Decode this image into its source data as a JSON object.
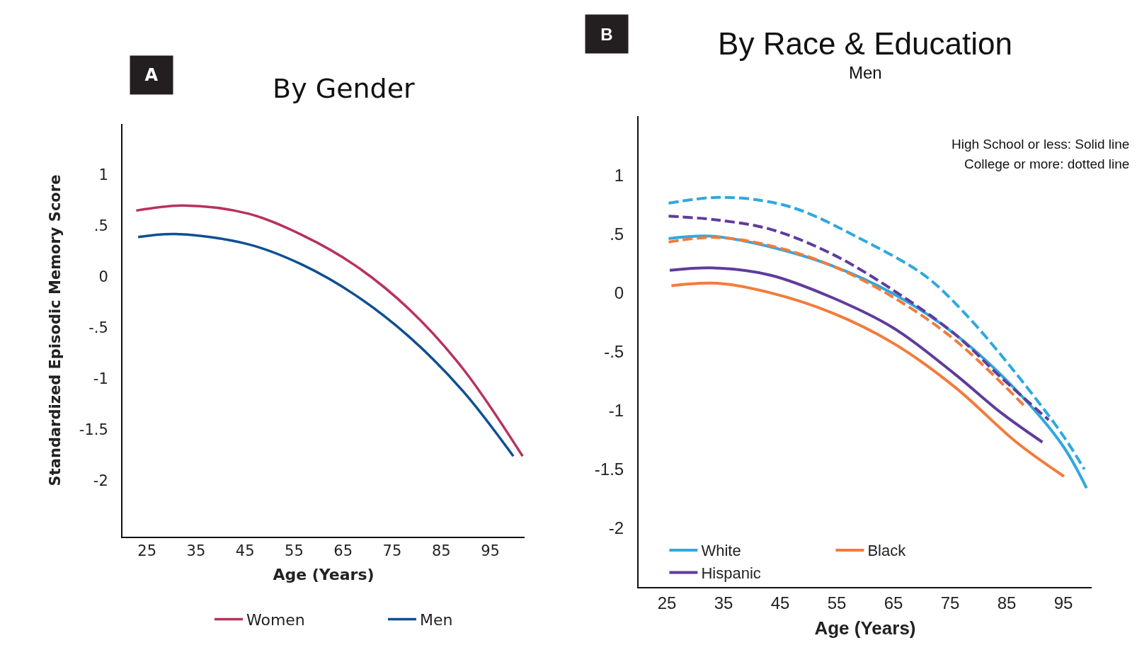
{
  "chart_data": [
    {
      "type": "line",
      "title": "By Gender",
      "xlabel": "Age (Years)",
      "ylabel": "Standardized Episodic Memory Score",
      "annotations": [
        "A"
      ],
      "legend": "bottom",
      "xlim": [
        20,
        102
      ],
      "ylim": [
        -2.55,
        1.5
      ],
      "xticks": [
        25,
        35,
        45,
        55,
        65,
        75,
        85,
        95
      ],
      "yticks": [
        {
          "value": 1,
          "label": "1"
        },
        {
          "value": 0.5,
          "label": ".5"
        },
        {
          "value": 0,
          "label": "0"
        },
        {
          "value": -0.5,
          "label": "-.5"
        },
        {
          "value": -1,
          "label": "-1"
        },
        {
          "value": -1.5,
          "label": "-1.5"
        },
        {
          "value": -2,
          "label": "-2"
        }
      ],
      "series": [
        {
          "name": "Women",
          "color": "#b8325c",
          "line_style": "solid",
          "x": [
            22.8,
            32.5,
            45.6,
            56.6,
            67.5,
            78.5,
            89.4,
            101.6
          ],
          "values": [
            0.65,
            0.7,
            0.62,
            0.41,
            0.11,
            -0.32,
            -0.9,
            -1.76
          ]
        },
        {
          "name": "Men",
          "color": "#0f4f92",
          "line_style": "solid",
          "x": [
            23.2,
            30.9,
            45.6,
            56.6,
            67.5,
            78.5,
            89.4,
            99.7
          ],
          "values": [
            0.39,
            0.42,
            0.32,
            0.12,
            -0.18,
            -0.59,
            -1.12,
            -1.76
          ]
        }
      ]
    },
    {
      "type": "line",
      "title": "By Race & Education",
      "subtitle": "Men",
      "xlabel": "Age (Years)",
      "annotations": [
        "B",
        "High School or less: Solid line",
        "College or more: dotted line"
      ],
      "legend": "bottom left",
      "xlim": [
        20,
        100
      ],
      "ylim": [
        -2.5,
        1.5
      ],
      "xticks": [
        25,
        35,
        45,
        55,
        65,
        75,
        85,
        95
      ],
      "yticks": [
        {
          "value": 1,
          "label": "1"
        },
        {
          "value": 0.5,
          "label": ".5"
        },
        {
          "value": 0,
          "label": "0"
        },
        {
          "value": -0.5,
          "label": "-.5"
        },
        {
          "value": -1,
          "label": "-1"
        },
        {
          "value": -1.5,
          "label": "-1.5"
        },
        {
          "value": -2,
          "label": "-2"
        }
      ],
      "series": [
        {
          "name": "White",
          "color": "#2fa8e0",
          "line_style": "solid",
          "x": [
            25.3,
            32.9,
            43.2,
            54.1,
            65.0,
            75.8,
            86.7,
            94.9,
            99.1
          ],
          "values": [
            0.46,
            0.48,
            0.39,
            0.23,
            -0.01,
            -0.35,
            -0.83,
            -1.3,
            -1.66
          ]
        },
        {
          "name": "Black",
          "color": "#f47b3a",
          "line_style": "solid",
          "x": [
            25.8,
            33.9,
            43.2,
            54.1,
            65.0,
            75.8,
            86.7,
            95.1
          ],
          "values": [
            0.06,
            0.08,
            0.0,
            -0.17,
            -0.43,
            -0.8,
            -1.27,
            -1.56
          ]
        },
        {
          "name": "Hispanic",
          "color": "#603c9c",
          "line_style": "solid",
          "x": [
            25.5,
            33.4,
            43.2,
            54.1,
            65.0,
            75.8,
            84.0,
            91.3
          ],
          "values": [
            0.19,
            0.21,
            0.15,
            -0.04,
            -0.3,
            -0.69,
            -1.02,
            -1.27
          ]
        },
        {
          "color": "#2fa8e0",
          "line_style": "dashed",
          "x": [
            25.3,
            33.9,
            42.1,
            48.6,
            59.5,
            70.4,
            77.5,
            86.7,
            94.9,
            98.7
          ],
          "values": [
            0.76,
            0.81,
            0.78,
            0.7,
            0.45,
            0.15,
            -0.17,
            -0.69,
            -1.21,
            -1.5
          ]
        },
        {
          "color": "#f47b3a",
          "line_style": "dashed",
          "x": [
            25.3,
            33.4,
            43.2,
            54.1,
            65.0,
            75.8,
            88.3
          ],
          "values": [
            0.43,
            0.47,
            0.4,
            0.23,
            -0.04,
            -0.4,
            -0.97
          ]
        },
        {
          "color": "#603c9c",
          "line_style": "dashed",
          "x": [
            25.3,
            33.4,
            43.2,
            54.1,
            65.0,
            75.8,
            84.0,
            92.4
          ],
          "values": [
            0.65,
            0.62,
            0.54,
            0.33,
            0.02,
            -0.35,
            -0.72,
            -1.08
          ]
        }
      ]
    }
  ]
}
